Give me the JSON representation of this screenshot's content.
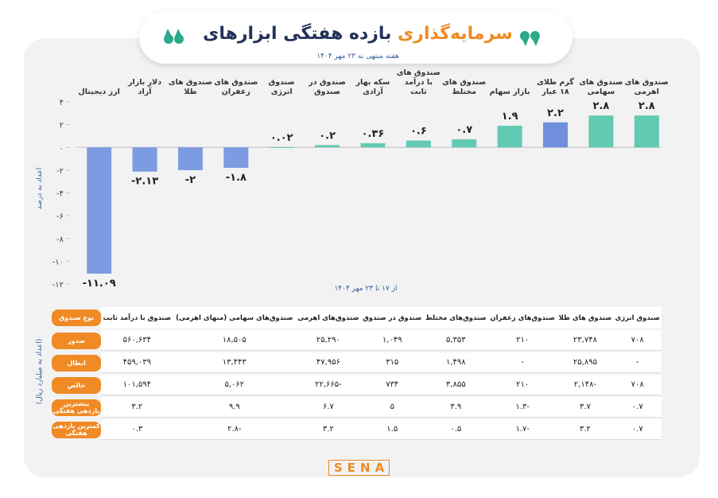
{
  "chart_data": {
    "type": "bar",
    "title": "بازده هفتگی ابزارهای",
    "title_highlight": "سرمایه‌گذاری",
    "subtitle": "هفته منتهی به ۲۳ مهر ۱۴۰۴",
    "y_label": "اعداد به درصد",
    "x_label": "از ۱۷ تا ۲۳ مهر ۱۴۰۴",
    "categories": [
      "صندوق های اهرمی",
      "صندوق های سهامی",
      "گرم طلای ۱۸ عیار",
      "بازار سهام",
      "صندوق های مختلط",
      "صندوق های با درآمد ثابت",
      "سکه بهار آزادی",
      "صندوق در صندوق",
      "صندوق انرژی",
      "صندوق های زعفران",
      "صندوق های طلا",
      "دلار بازار آزاد",
      "ارز دیجیتال"
    ],
    "values": [
      2.8,
      2.8,
      2.2,
      1.9,
      0.7,
      0.6,
      0.36,
      0.2,
      0.02,
      -1.8,
      -2,
      -2.13,
      -11.09
    ],
    "value_labels": [
      "۲.۸",
      "۲.۸",
      "۲.۲",
      "۱.۹",
      "۰.۷",
      "۰.۶",
      "۰.۳۶",
      "۰.۲",
      "۰.۰۲",
      "-۱.۸",
      "-۲",
      "-۲.۱۳",
      "-۱۱.۰۹"
    ],
    "colors": [
      "#62c9b2",
      "#62c9b2",
      "#6f8fdc",
      "#62c9b2",
      "#62c9b2",
      "#62c9b2",
      "#62c9b2",
      "#62c9b2",
      "#62c9b2",
      "#7d9be2",
      "#7d9be2",
      "#7d9be2",
      "#7d9be2"
    ],
    "ylim": [
      -12,
      4
    ],
    "yticks": [
      {
        "value": 4,
        "label": "۴"
      },
      {
        "value": 2,
        "label": "۲"
      },
      {
        "value": 0,
        "label": "۰"
      },
      {
        "value": -2,
        "label": "-۲"
      },
      {
        "value": -4,
        "label": "-۴"
      },
      {
        "value": -6,
        "label": "-۶"
      },
      {
        "value": -8,
        "label": "-۸"
      },
      {
        "value": -10,
        "label": "-۱۰"
      },
      {
        "value": -12,
        "label": "-۱۲"
      }
    ],
    "grid": false
  },
  "table": {
    "unit": "(اعداد به میلیارد ریال)",
    "header": [
      "نوع صندوق",
      "صندوق با درآمد ثابت",
      "صندوق‌های سهامی (منهای اهرمی)",
      "صندوق‌های اهرمی",
      "صندوق در صندوق",
      "صندوق‌های مختلط",
      "صندوق‌های زعفران",
      "صندوق های طلا",
      "صندوق انرژی"
    ],
    "rows": [
      [
        "صدور",
        "۵۶۰,۶۳۴",
        "۱۸,۵۰۵",
        "۲۵,۲۹۰",
        "۱,۰۴۹",
        "۵,۳۵۳",
        "۲۱۰",
        "۲۳,۷۴۸",
        "۷۰۸"
      ],
      [
        "ابطال",
        "۴۵۹,۰۳۹",
        "۱۳,۴۴۳",
        "۴۷,۹۵۶",
        "۳۱۵",
        "۱,۴۹۸",
        "-",
        "۲۵,۸۹۵",
        "-"
      ],
      [
        "خالص",
        "۱۰۱,۵۹۴",
        "۵,۰۶۲",
        "-۲۲,۶۶۵",
        "۷۳۴",
        "۳,۸۵۵",
        "۲۱۰",
        "-۲,۱۴۸",
        "۷۰۸"
      ],
      [
        "بیشترین بازدهی هفتگی",
        "۳.۲",
        "۹.۹",
        "۶.۷",
        "۵",
        "۳.۹",
        "-۱.۳",
        "۳.۷",
        "۰.۷"
      ],
      [
        "کمترین بازدهی هفتگی",
        "۰.۳",
        "-۲.۸",
        "۳.۲",
        "۱.۵",
        "۰.۵",
        "-۱.۷",
        "۳.۲",
        "۰.۷"
      ]
    ]
  },
  "logo": "SENA"
}
